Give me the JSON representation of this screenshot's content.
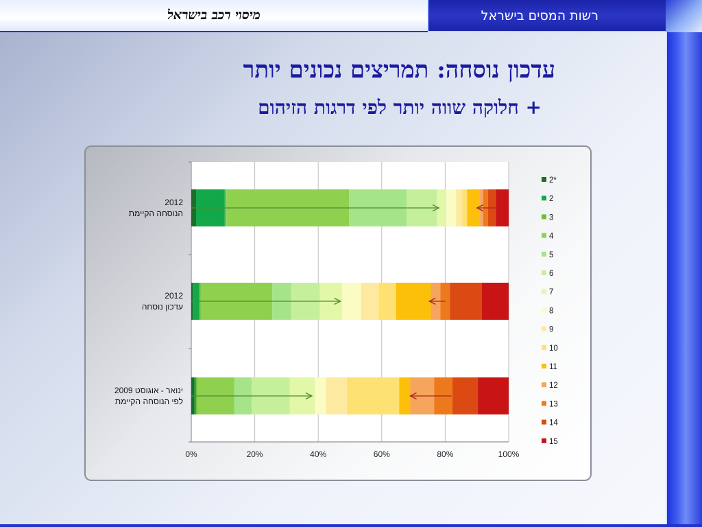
{
  "header": {
    "left_title": "מיסוי רכב בישראל",
    "right_title": "רשות המסים בישראל"
  },
  "slide": {
    "title": "עדכון נוסחה: תמריצים נכונים יותר",
    "subtitle": "+ חלוקה שווה יותר לפי דרגות הזיהום"
  },
  "chart_data": {
    "type": "bar",
    "orientation": "horizontal",
    "stacked": "percent",
    "categories": [
      [
        "2012",
        "הנוסחה הקיימת"
      ],
      [
        "2012",
        "עדכון נוסחה"
      ],
      [
        "ינואר - אוגוסט 2009",
        "לפי הנוסחה הקיימת"
      ]
    ],
    "series": [
      {
        "name": "2*",
        "color": "#1e6b2a",
        "values": [
          1.5,
          0.5,
          1.0
        ]
      },
      {
        "name": "2",
        "color": "#13a84a",
        "values": [
          9.0,
          2.0,
          0.5
        ]
      },
      {
        "name": "3",
        "color": "#6fbf3a",
        "values": [
          0.5,
          0.5,
          0.5
        ]
      },
      {
        "name": "4",
        "color": "#8fd14f",
        "values": [
          38.5,
          22.5,
          11.5
        ]
      },
      {
        "name": "5",
        "color": "#a6e48a",
        "values": [
          18.0,
          6.0,
          5.5
        ]
      },
      {
        "name": "6",
        "color": "#c6ef9c",
        "values": [
          9.5,
          9.0,
          12.0
        ]
      },
      {
        "name": "7",
        "color": "#e2f7a8",
        "values": [
          3.0,
          7.0,
          8.0
        ]
      },
      {
        "name": "8",
        "color": "#fbfbc4",
        "values": [
          3.0,
          6.0,
          3.5
        ]
      },
      {
        "name": "9",
        "color": "#fde9a0",
        "values": [
          2.0,
          5.5,
          6.5
        ]
      },
      {
        "name": "10",
        "color": "#fde173",
        "values": [
          1.5,
          5.5,
          16.5
        ]
      },
      {
        "name": "11",
        "color": "#fcc00a",
        "values": [
          4.0,
          11.0,
          3.5
        ]
      },
      {
        "name": "12",
        "color": "#f5a55c",
        "values": [
          1.0,
          3.0,
          7.5
        ]
      },
      {
        "name": "13",
        "color": "#ec7a1c",
        "values": [
          1.5,
          3.0,
          5.8
        ]
      },
      {
        "name": "14",
        "color": "#dc4a14",
        "values": [
          2.5,
          10.0,
          8.0
        ]
      },
      {
        "name": "15",
        "color": "#c81414",
        "values": [
          4.0,
          8.5,
          9.7
        ]
      }
    ],
    "xaxis": {
      "ticks": [
        "0%",
        "20%",
        "40%",
        "60%",
        "80%",
        "100%"
      ],
      "range": [
        0,
        100
      ]
    },
    "grid": true,
    "legend": "right",
    "arrows": [
      {
        "row": 0,
        "from": 0,
        "to": 78,
        "dir": "right",
        "color": "#4f8a34"
      },
      {
        "row": 0,
        "from": 97,
        "to": 90,
        "dir": "left",
        "color": "#b02020"
      },
      {
        "row": 1,
        "from": 0,
        "to": 47,
        "dir": "right",
        "color": "#4f8a34"
      },
      {
        "row": 1,
        "from": 80,
        "to": 75,
        "dir": "left",
        "color": "#b02020"
      },
      {
        "row": 2,
        "from": 0,
        "to": 38,
        "dir": "right",
        "color": "#4f8a34"
      },
      {
        "row": 2,
        "from": 82,
        "to": 69,
        "dir": "left",
        "color": "#b02020"
      }
    ]
  }
}
